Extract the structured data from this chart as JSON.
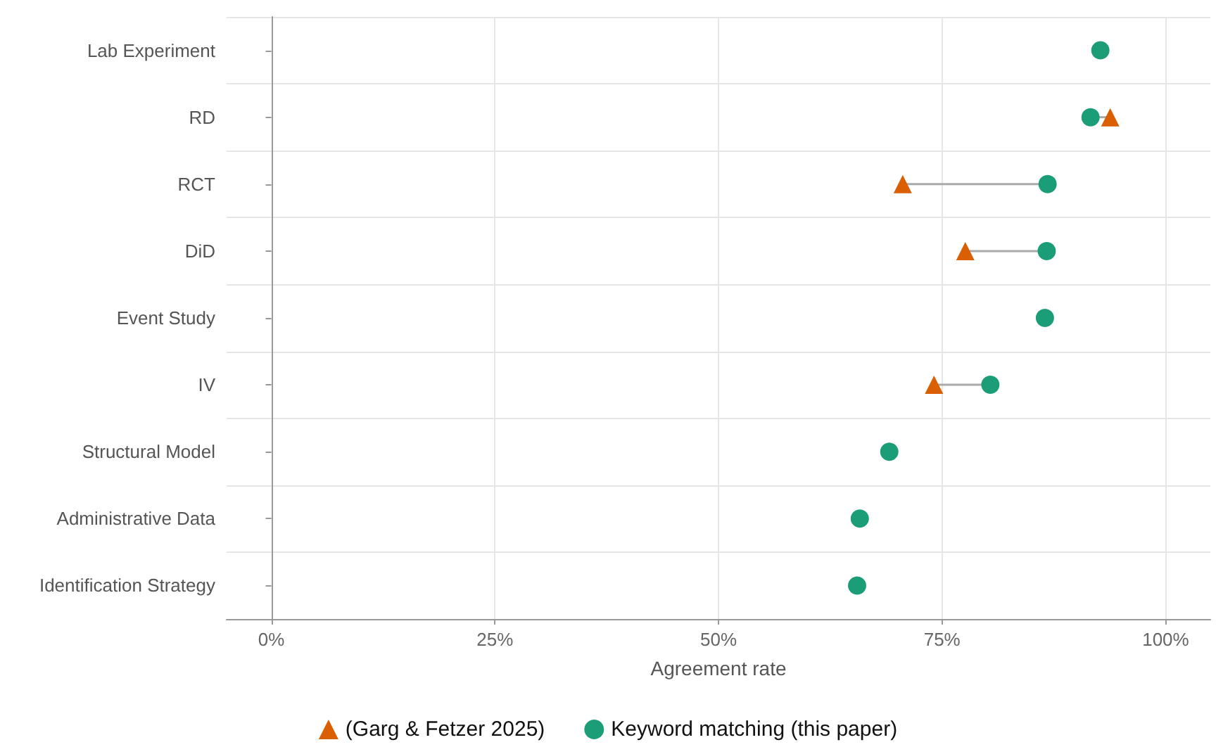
{
  "chart_data": {
    "type": "scatter",
    "orientation": "horizontal",
    "xlabel": "Agreement rate",
    "categories": [
      "Lab Experiment",
      "RD",
      "RCT",
      "DiD",
      "Event Study",
      "IV",
      "Structural Model",
      "Administrative Data",
      "Identification Strategy"
    ],
    "series": [
      {
        "name": "(Garg & Fetzer 2025)",
        "color": "#d95f02",
        "marker": "triangle",
        "values": [
          null,
          93.8,
          70.6,
          77.6,
          null,
          74.1,
          null,
          null,
          null
        ]
      },
      {
        "name": "Keyword matching (this paper)",
        "color": "#1b9e77",
        "marker": "circle",
        "values": [
          92.7,
          91.6,
          86.8,
          86.7,
          86.5,
          80.4,
          69.1,
          65.8,
          65.5
        ]
      }
    ],
    "xlim": [
      -5,
      105
    ],
    "xticks": [
      {
        "value": 0,
        "label": "0%"
      },
      {
        "value": 25,
        "label": "25%"
      },
      {
        "value": 50,
        "label": "50%"
      },
      {
        "value": 75,
        "label": "75%"
      },
      {
        "value": 100,
        "label": "100%"
      }
    ],
    "grid": true,
    "legend": "bottom"
  }
}
